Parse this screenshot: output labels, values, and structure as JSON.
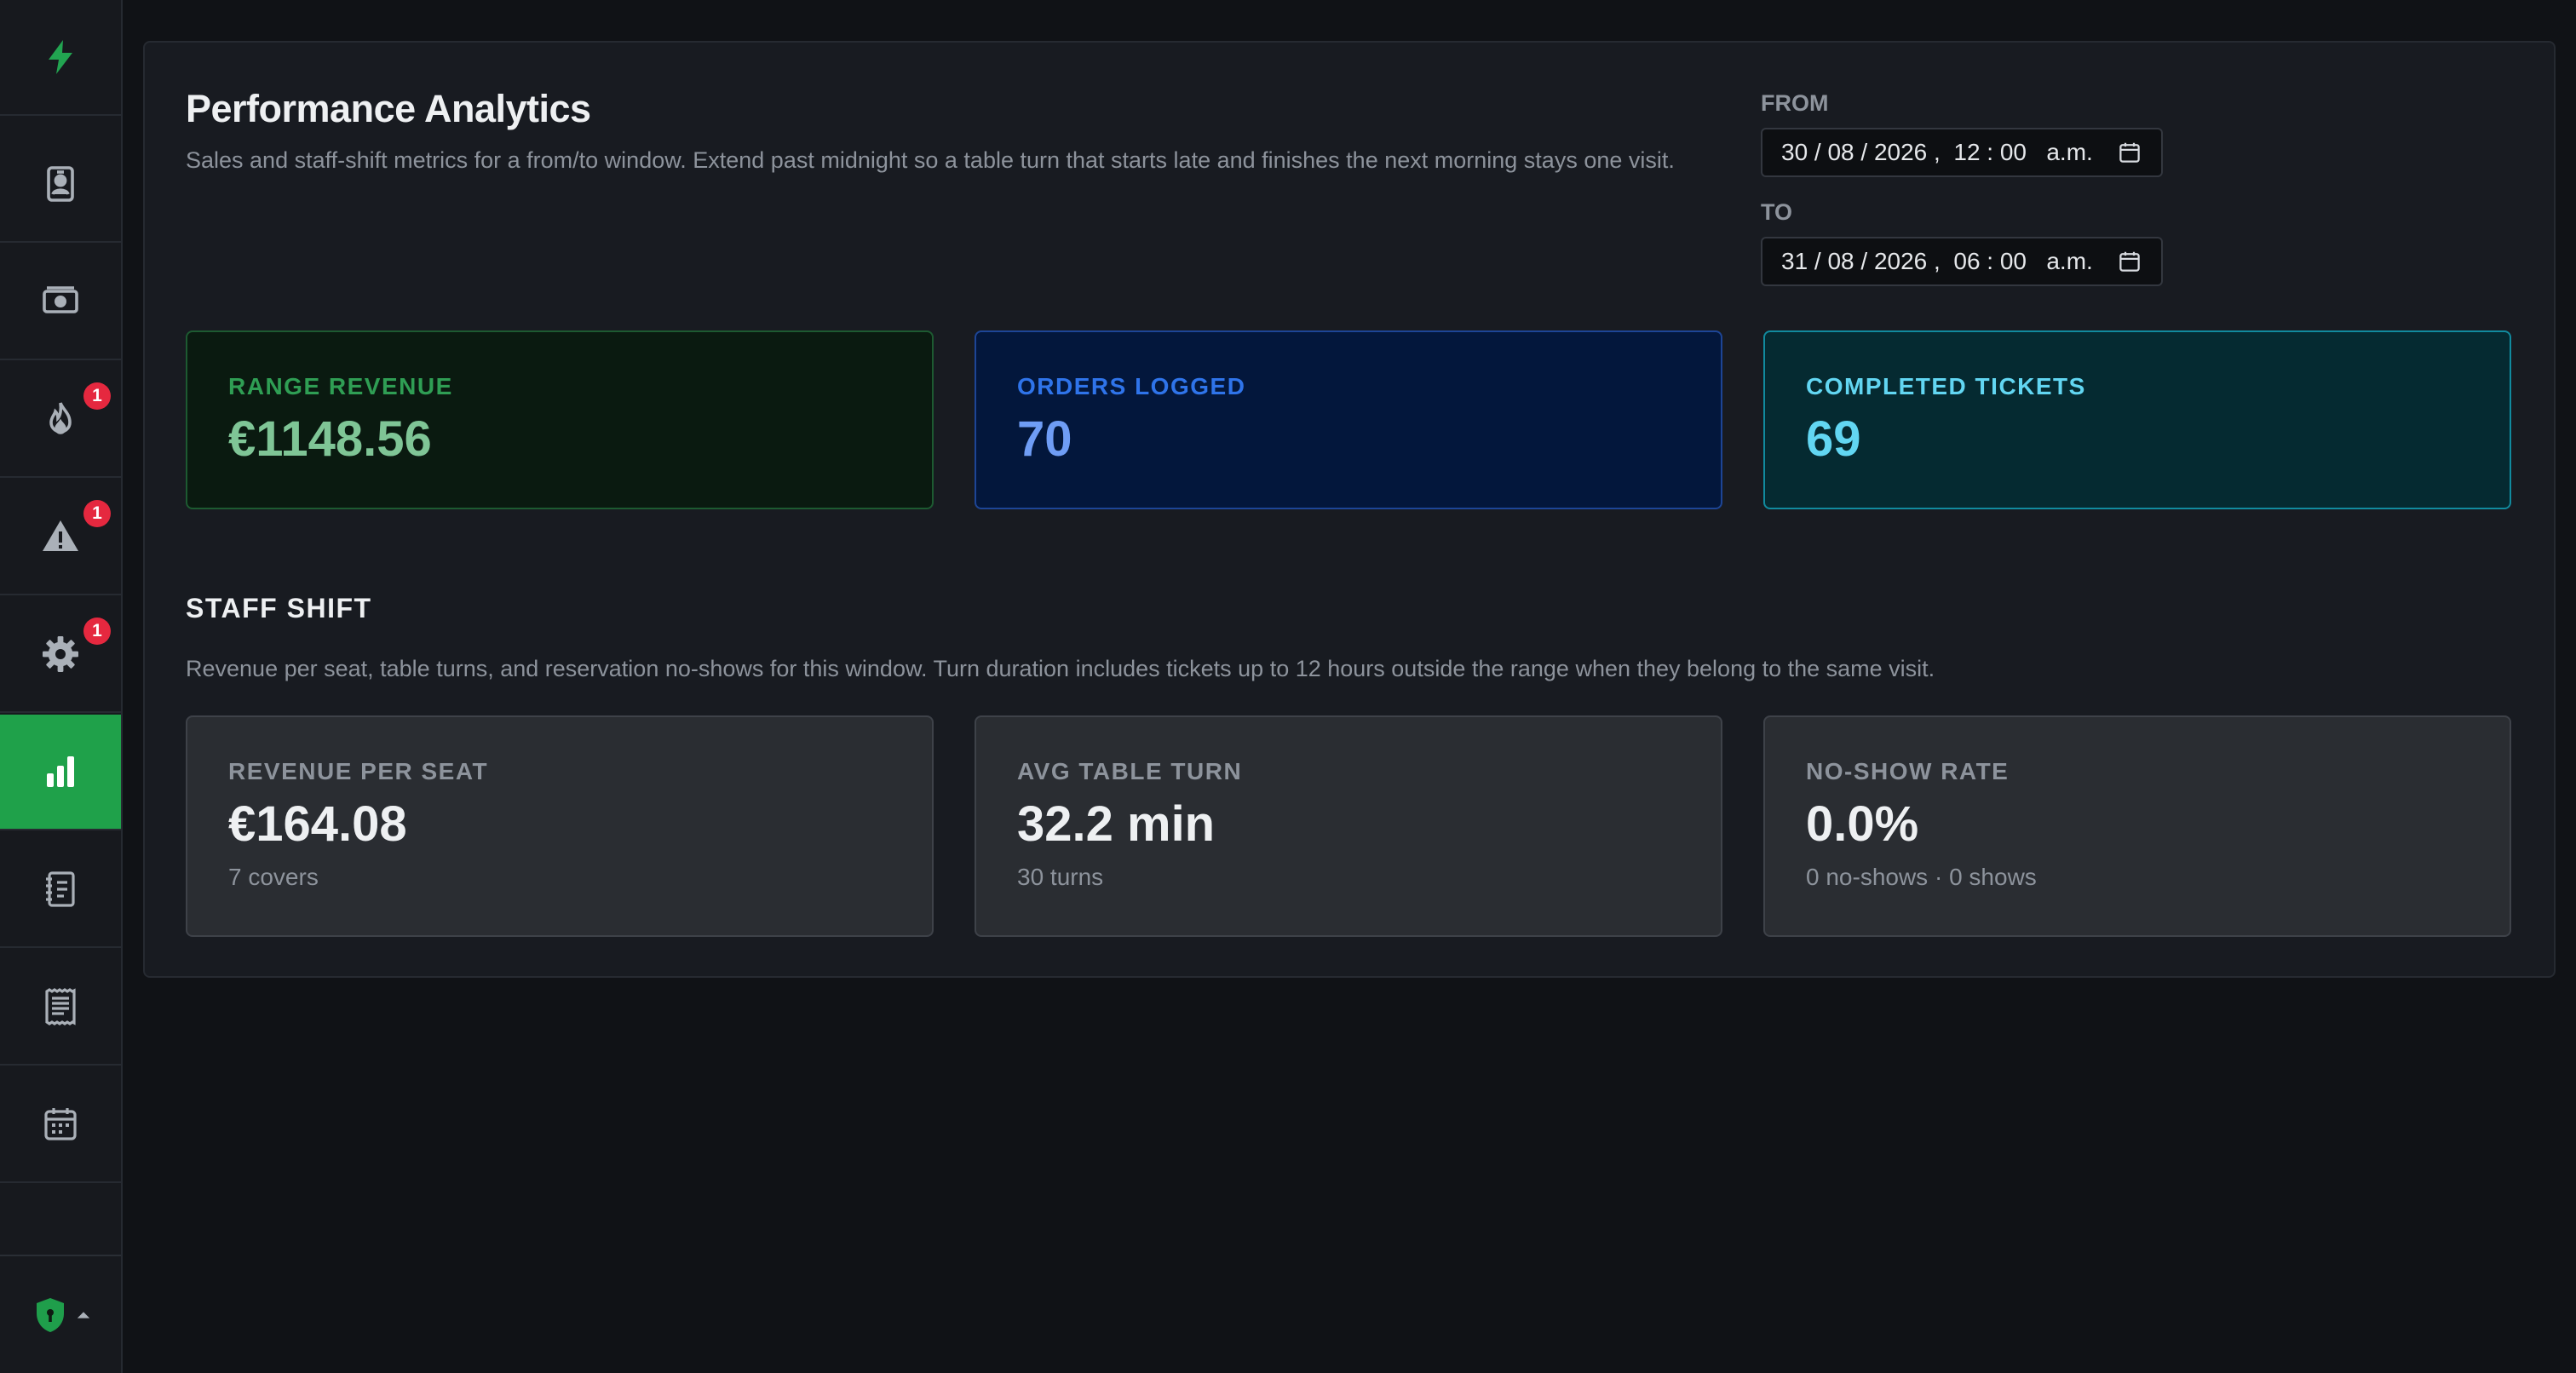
{
  "sidebar": {
    "logo_icon": "lightning-bolt-icon",
    "items": [
      {
        "name": "staff-badge",
        "icon": "id-badge-icon",
        "badge": ""
      },
      {
        "name": "money",
        "icon": "banknote-icon",
        "badge": ""
      },
      {
        "name": "fire",
        "icon": "flame-icon",
        "badge": "1"
      },
      {
        "name": "alerts",
        "icon": "warning-icon",
        "badge": "1"
      },
      {
        "name": "settings",
        "icon": "gear-icon",
        "badge": "1"
      },
      {
        "name": "analytics",
        "icon": "bar-chart-icon",
        "badge": "",
        "active": true
      },
      {
        "name": "notebook",
        "icon": "notebook-icon",
        "badge": ""
      },
      {
        "name": "receipt",
        "icon": "receipt-icon",
        "badge": ""
      },
      {
        "name": "calendar",
        "icon": "calendar-icon",
        "badge": ""
      }
    ],
    "footer_icon": "shield-lock-icon",
    "accent": "#1fa14a"
  },
  "page": {
    "title": "Performance Analytics",
    "subtitle": "Sales and staff-shift metrics for a from/to window. Extend past midnight so a table turn that starts late and finishes the next morning stays one visit.",
    "from_label": "FROM",
    "from_value": "30 / 08 / 2026 ,  12 : 00   a.m.",
    "to_label": "TO",
    "to_value": "31 / 08 / 2026 ,  06 : 00   a.m."
  },
  "summary_cards": [
    {
      "label": "RANGE REVENUE",
      "value": "€1148.56",
      "label_color": "#2f9e54",
      "value_color": "#7fc596",
      "bg": "#0a1a10",
      "border": "#1d5a31"
    },
    {
      "label": "ORDERS LOGGED",
      "value": "70",
      "label_color": "#2f74ea",
      "value_color": "#6f9df5",
      "bg": "#03173c",
      "border": "#1d4596"
    },
    {
      "label": "COMPLETED TICKETS",
      "value": "69",
      "label_color": "#62d6f2",
      "value_color": "#62d6f2",
      "bg": "#052a31",
      "border": "#118a9e"
    }
  ],
  "staff_shift": {
    "title": "STAFF SHIFT",
    "description": "Revenue per seat, table turns, and reservation no-shows for this window. Turn duration includes tickets up to 12 hours outside the range when they belong to the same visit.",
    "cards": [
      {
        "label": "REVENUE PER SEAT",
        "value": "€164.08",
        "sub": "7 covers"
      },
      {
        "label": "AVG TABLE TURN",
        "value": "32.2 min",
        "sub": "30 turns"
      },
      {
        "label": "NO-SHOW RATE",
        "value": "0.0%",
        "sub": "0 no-shows · 0 shows"
      }
    ]
  }
}
